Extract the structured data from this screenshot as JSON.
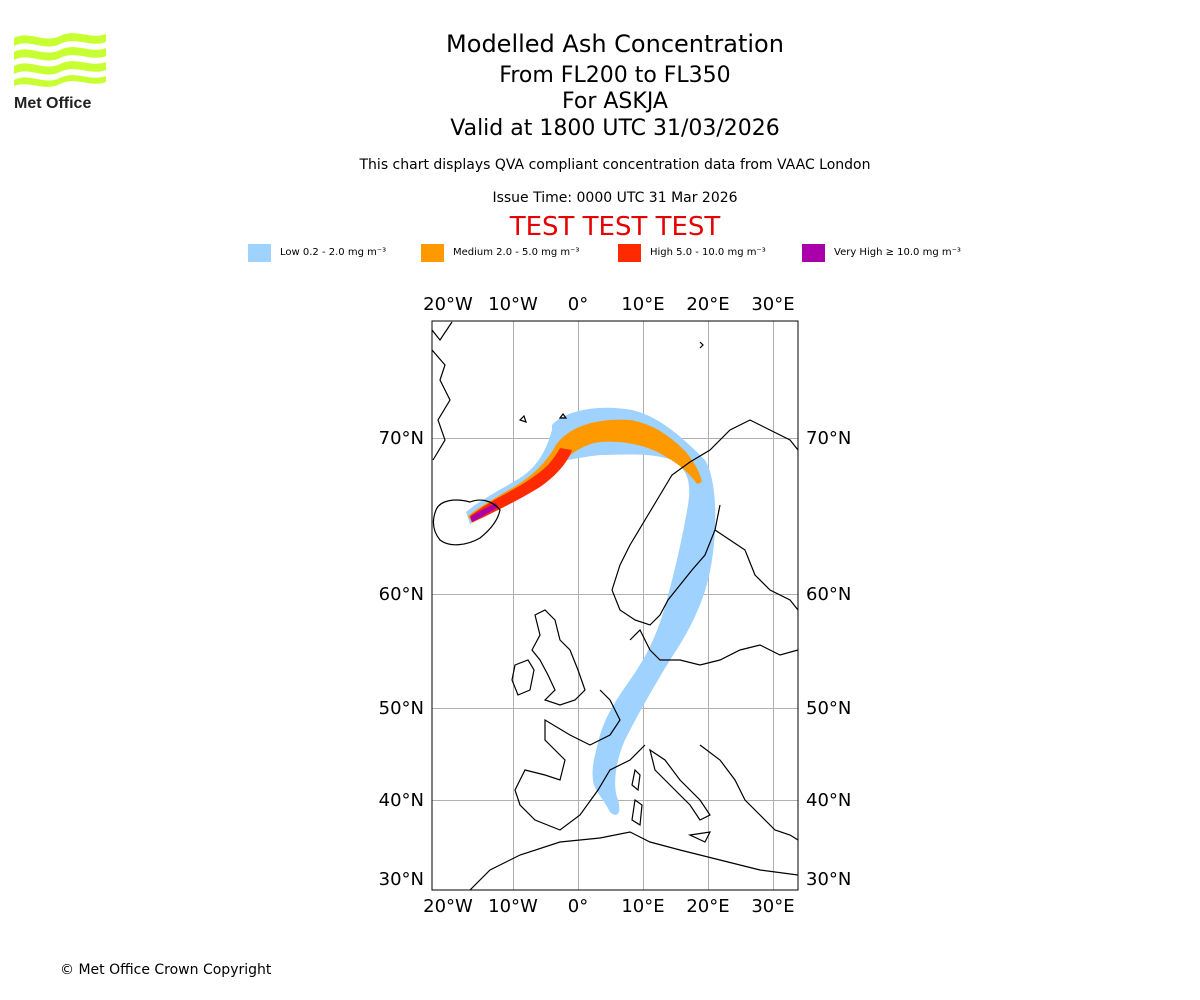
{
  "logo": {
    "text": "Met Office",
    "color": "#c8ff32"
  },
  "titles": {
    "main": "Modelled Ash Concentration",
    "levels": "From FL200 to FL350",
    "volcano": "For ASKJA",
    "valid": "Valid at 1800 UTC 31/03/2026",
    "compliance": "This chart displays QVA compliant concentration data from VAAC London",
    "issue_time": "Issue Time: 0000 UTC 31 Mar 2026",
    "test_banner": "TEST TEST TEST"
  },
  "legend": [
    {
      "label": "Low 0.2 - 2.0 mg m⁻³",
      "color": "#a0d2ff"
    },
    {
      "label": "Medium 2.0 - 5.0 mg m⁻³",
      "color": "#ff9900"
    },
    {
      "label": "High 5.0 - 10.0 mg m⁻³",
      "color": "#ff2a00"
    },
    {
      "label": "Very High ≥ 10.0 mg m⁻³",
      "color": "#aa00aa"
    }
  ],
  "map": {
    "projection": "Mercator",
    "lon_range": [
      -22,
      34
    ],
    "lat_range": [
      29,
      76
    ],
    "lon_ticks": [
      "20°W",
      "10°W",
      "0°",
      "10°E",
      "20°E",
      "30°E"
    ],
    "lat_ticks": [
      "70°N",
      "60°N",
      "50°N",
      "40°N",
      "30°N"
    ],
    "ash_regions": [
      "Low",
      "Medium",
      "High",
      "Very High"
    ]
  },
  "copyright": "© Met Office Crown Copyright"
}
